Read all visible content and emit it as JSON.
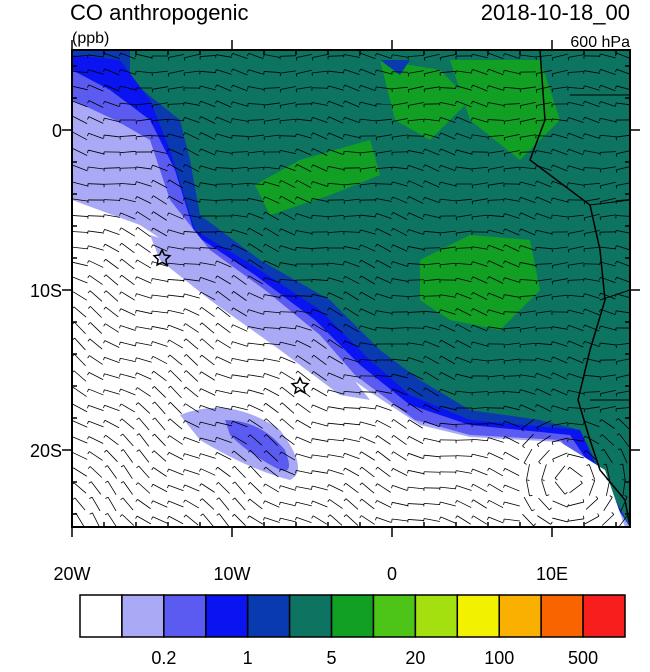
{
  "header": {
    "title": "CO anthropogenic",
    "units": "(ppb)",
    "date": "2018-10-18_00",
    "level": "600 hPa"
  },
  "map": {
    "lat_labels": [
      "0",
      "10S",
      "20S"
    ],
    "lon_labels": [
      "20W",
      "10W",
      "0",
      "10E"
    ]
  },
  "colorbar": {
    "colors": [
      "#ffffff",
      "#a9a9f5",
      "#5b5bf2",
      "#0a14f0",
      "#0a3ab0",
      "#0e7462",
      "#12a024",
      "#4cc418",
      "#a4e010",
      "#f2f200",
      "#f9b000",
      "#f96400",
      "#f81e1e"
    ],
    "labels": [
      "0.2",
      "1",
      "5",
      "20",
      "100",
      "500"
    ]
  }
}
